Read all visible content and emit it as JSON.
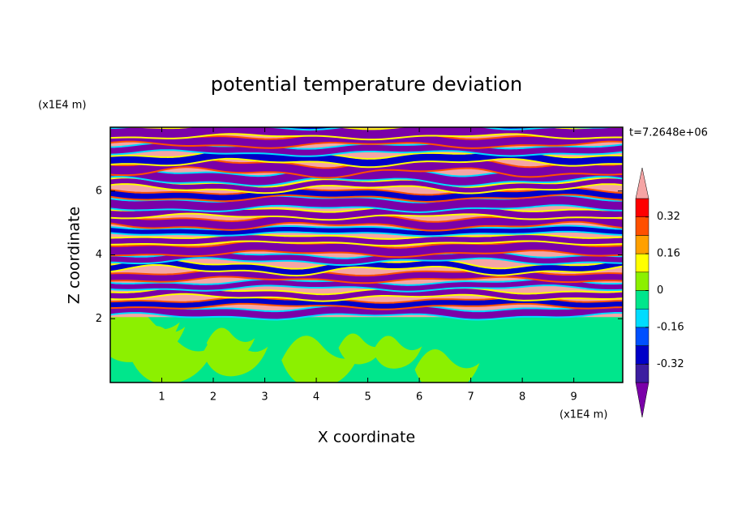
{
  "chart_data": {
    "type": "contour",
    "title": "potential temperature deviation",
    "x_label": "X coordinate",
    "y_label": "Z coordinate",
    "x_unit": "(x1E4 m)",
    "y_unit": "(x1E4 m)",
    "time_label": "t=7.2648e+06",
    "xlim": [
      0,
      9.95
    ],
    "ylim": [
      0,
      8
    ],
    "xticks": [
      1,
      2,
      3,
      4,
      5,
      6,
      7,
      8,
      9
    ],
    "yticks": [
      2,
      4,
      6
    ],
    "levels": [
      -0.4,
      -0.32,
      -0.24,
      -0.16,
      -0.08,
      0,
      0.08,
      0.16,
      0.24,
      0.32,
      0.4
    ],
    "colors": [
      "#7a00a8",
      "#3c1ea0",
      "#0000c8",
      "#0050ff",
      "#00dcff",
      "#00e68c",
      "#8cf000",
      "#ffff00",
      "#ffa000",
      "#ff5000",
      "#ff0000",
      "#f5a5a5"
    ],
    "colorbar_ticks": [
      -0.32,
      -0.16,
      0,
      0.16,
      0.32
    ]
  }
}
